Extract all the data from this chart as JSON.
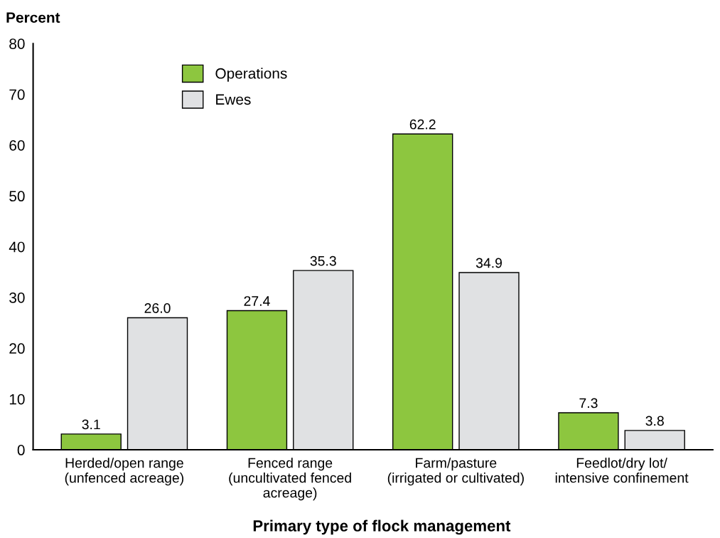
{
  "chart_data": {
    "type": "bar",
    "ylabel": "Percent",
    "xlabel": "Primary type of flock management",
    "categories": [
      "Herded/open range\n(unfenced acreage)",
      "Fenced range\n(uncultivated fenced\nacreage)",
      "Farm/pasture\n(irrigated or cultivated)",
      "Feedlot/dry lot/\nintensive confinement"
    ],
    "series": [
      {
        "name": "Operations",
        "color": "#8dc63f",
        "values": [
          3.1,
          27.4,
          62.2,
          7.3
        ]
      },
      {
        "name": "Ewes",
        "color": "#e0e1e3",
        "values": [
          26.0,
          35.3,
          34.9,
          3.8
        ],
        "value_labels": [
          "26.0",
          "35.3",
          "34.9",
          "3.8"
        ]
      }
    ],
    "ylim": [
      0,
      80
    ],
    "yticks": [
      0,
      10,
      20,
      30,
      40,
      50,
      60,
      70,
      80
    ],
    "grid": false,
    "legend": "top left",
    "data_labels": true
  }
}
